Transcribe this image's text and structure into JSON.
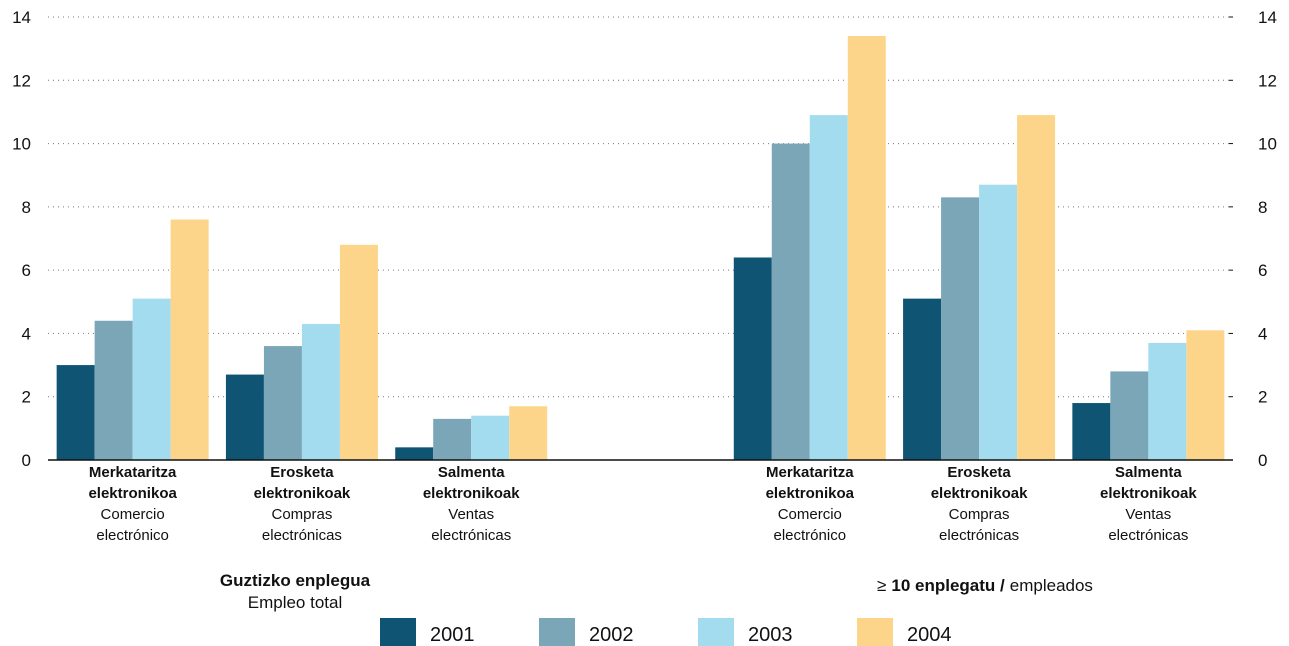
{
  "chart_data": {
    "type": "bar",
    "categories": [
      "Merkataritza elektronikoa",
      "Erosketa elektronikoak",
      "Salmenta elektronikoak",
      null,
      "Merkataritza elektronikoa",
      "Erosketa elektronikoak",
      "Salmenta elektronikoak"
    ],
    "category_subtitles": [
      "Comercio electrónico",
      "Compras electrónicas",
      "Ventas electrónicas",
      null,
      "Comercio electrónico",
      "Compras electrónicas",
      "Ventas electrónicas"
    ],
    "series": [
      {
        "name": "2001",
        "color": "#0f5573",
        "values": [
          3.0,
          2.7,
          0.4,
          null,
          6.4,
          5.1,
          1.8
        ]
      },
      {
        "name": "2002",
        "color": "#7aa6b8",
        "values": [
          4.4,
          3.6,
          1.3,
          null,
          10.0,
          8.3,
          2.8
        ]
      },
      {
        "name": "2003",
        "color": "#a3dcef",
        "values": [
          5.1,
          4.3,
          1.4,
          null,
          10.9,
          8.7,
          3.7
        ]
      },
      {
        "name": "2004",
        "color": "#fdd58a",
        "values": [
          7.6,
          6.8,
          1.7,
          null,
          13.4,
          10.9,
          4.1
        ]
      }
    ],
    "group_labels": [
      {
        "title": "Guztizko enplegua",
        "subtitle": "Empleo total"
      },
      {
        "prefix": "≥",
        "title": "10 enplegatu /",
        "subtitle": "empleados"
      }
    ],
    "ylim": [
      0,
      14
    ],
    "yticks": [
      0,
      2,
      4,
      6,
      8,
      10,
      12,
      14
    ],
    "y2lim": [
      0,
      14
    ],
    "y2ticks": [
      0,
      2,
      4,
      6,
      8,
      10,
      12,
      14
    ],
    "grid": true,
    "legend": "bottom"
  }
}
